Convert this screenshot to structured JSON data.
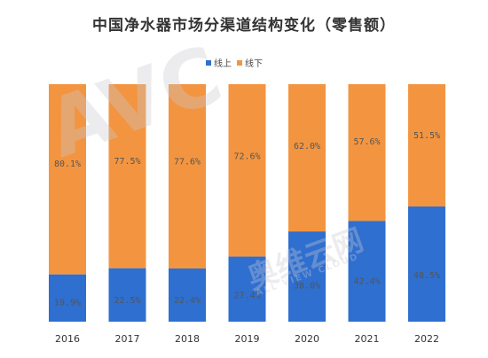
{
  "chart_title": "中国净水器市场分渠道结构变化（零售额）",
  "colors": {
    "online": "#2E6FD0",
    "offline": "#F39540",
    "label_text": "#555555",
    "axis_text": "#333333"
  },
  "watermark": {
    "logo_text": "AVC",
    "cn_text": "奥维云网",
    "en_text": "ALL VIEW CLOUD"
  },
  "chart_data": {
    "type": "bar",
    "stacked": true,
    "categories": [
      "2016",
      "2017",
      "2018",
      "2019",
      "2020",
      "2021",
      "2022"
    ],
    "series": [
      {
        "name": "线上",
        "values": [
          19.9,
          22.5,
          22.4,
          27.4,
          38.0,
          42.4,
          48.5
        ],
        "labels": [
          "19.9%",
          "22.5%",
          "22.4%",
          "27.4%",
          "38.0%",
          "42.4%",
          "48.5%"
        ]
      },
      {
        "name": "线下",
        "values": [
          80.1,
          77.5,
          77.6,
          72.6,
          62.0,
          57.6,
          51.5
        ],
        "labels": [
          "80.1%",
          "77.5%",
          "77.6%",
          "72.6%",
          "62.0%",
          "57.6%",
          "51.5%"
        ]
      }
    ],
    "ylim": [
      0,
      100
    ],
    "legend_position": "top-center",
    "grid": false
  }
}
